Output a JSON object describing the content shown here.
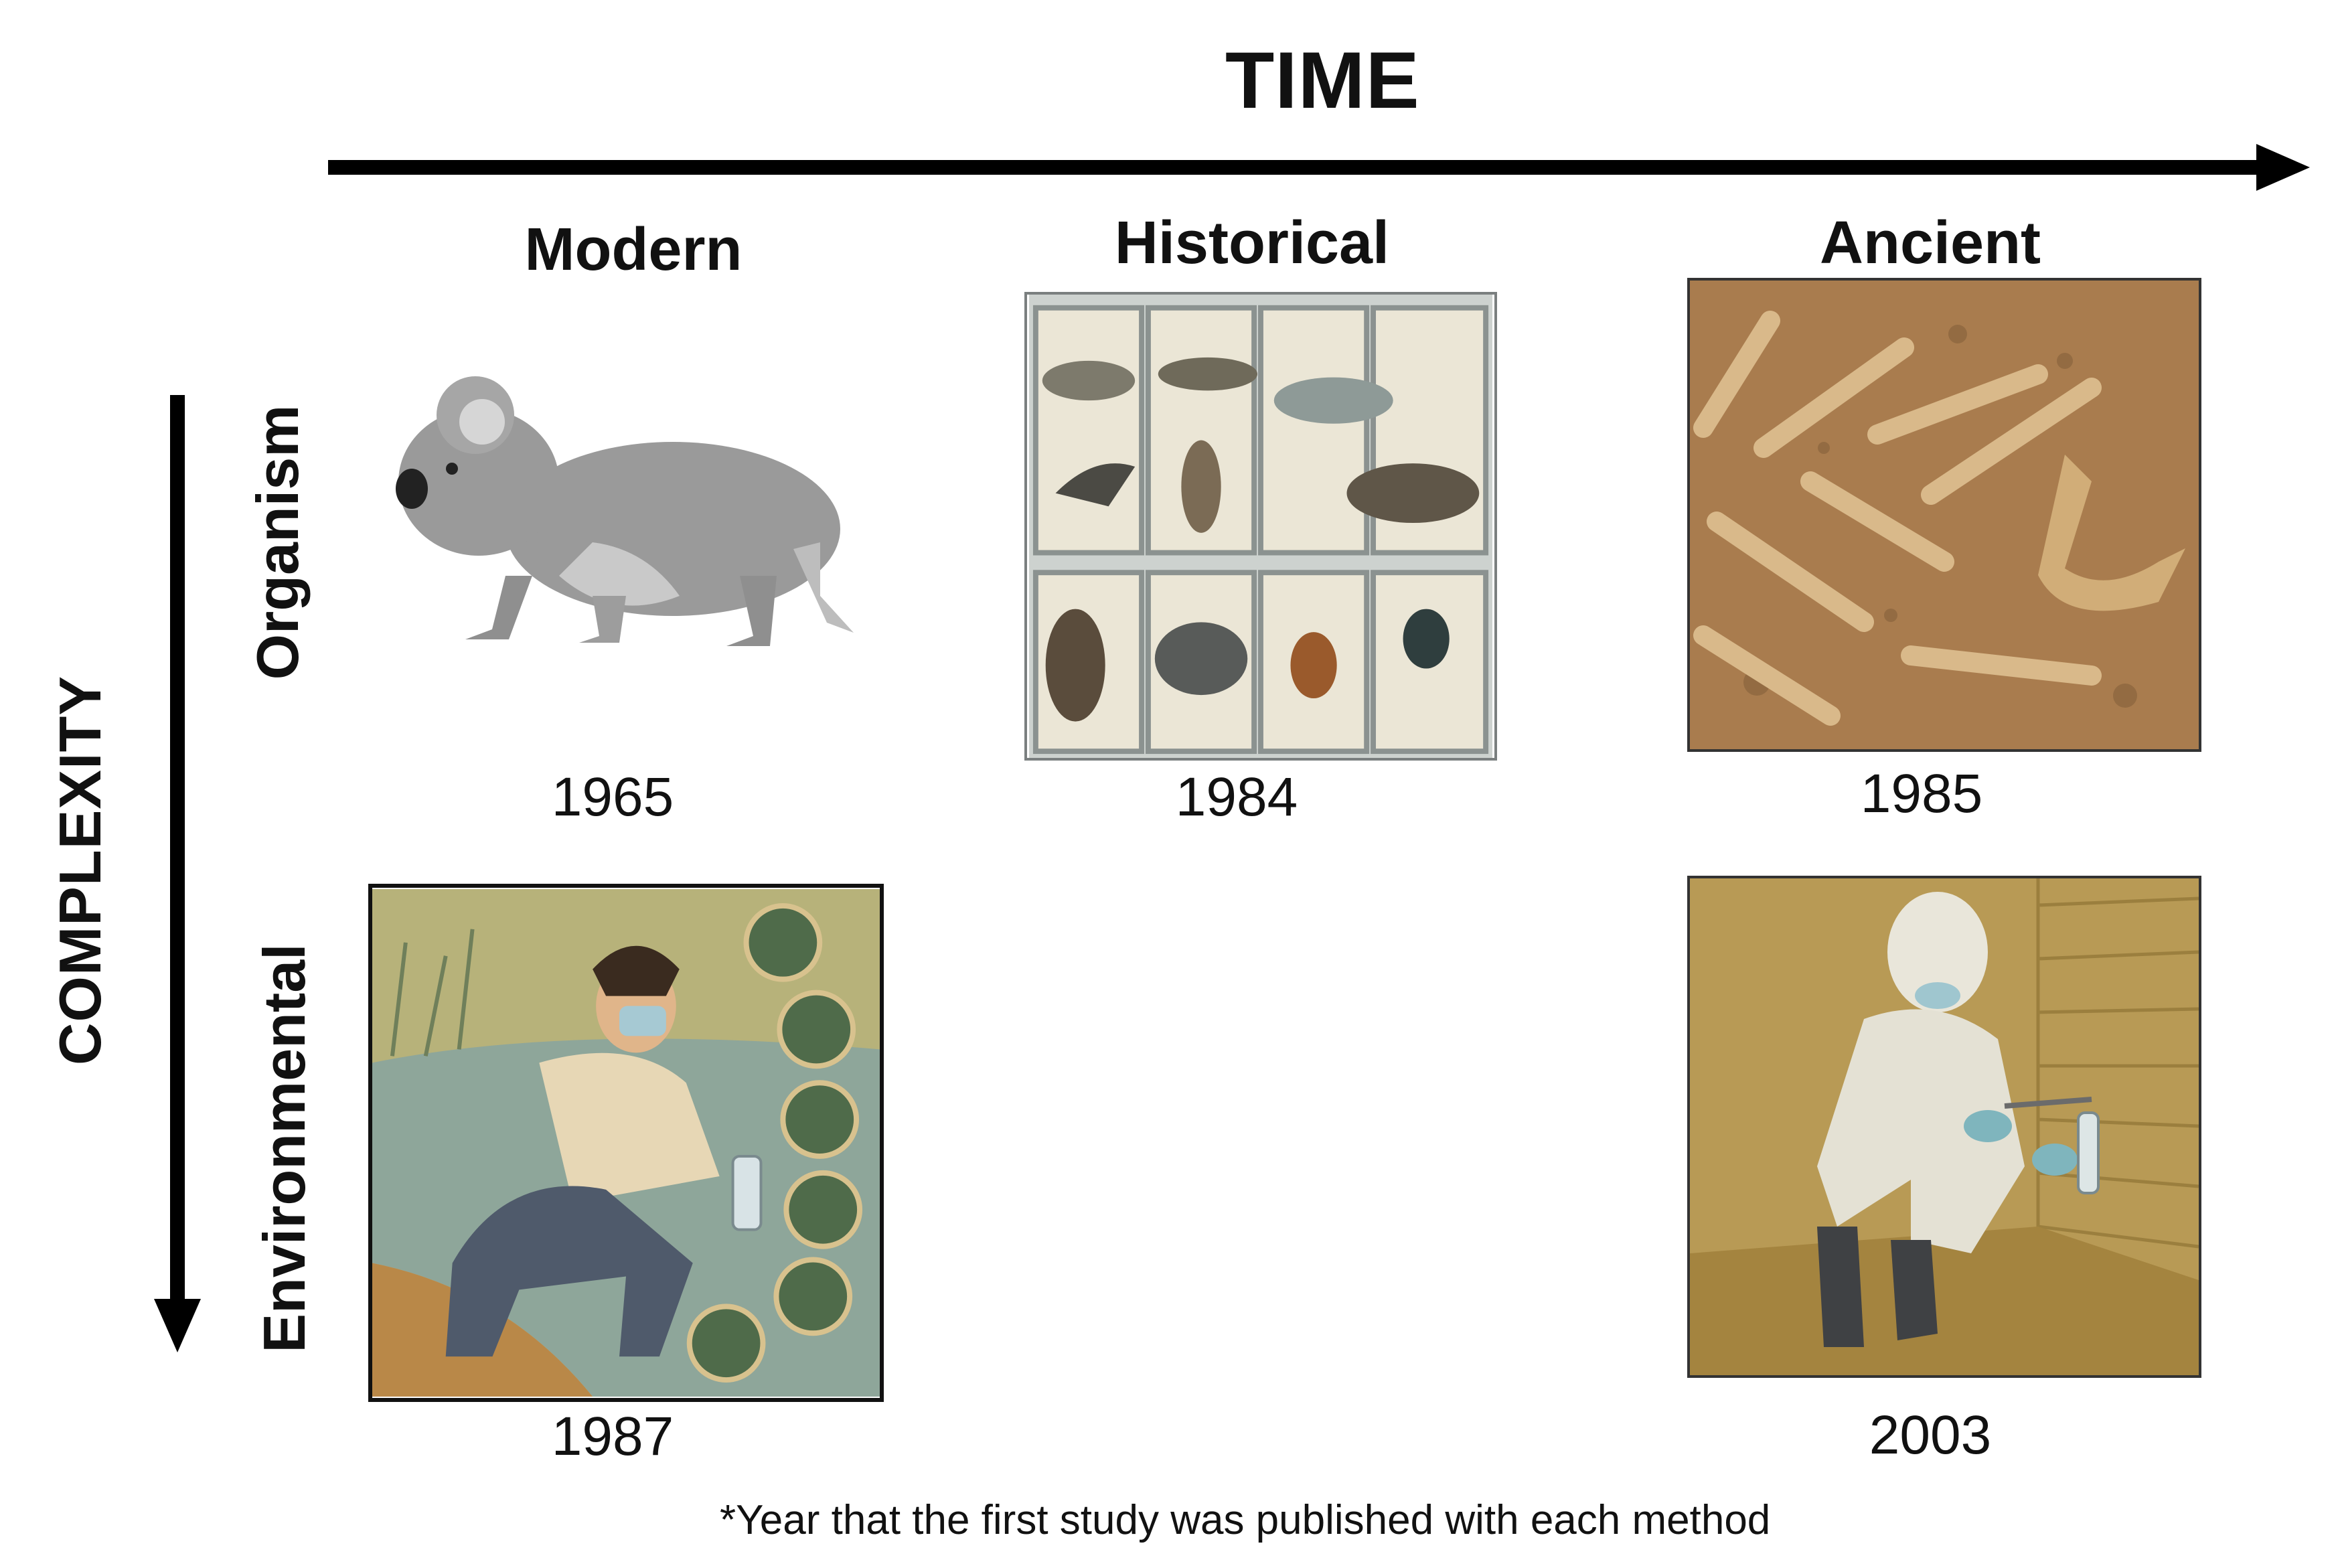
{
  "axes": {
    "time_label": "TIME",
    "complexity_label": "COMPLEXITY"
  },
  "columns": [
    "Modern",
    "Historical",
    "Ancient"
  ],
  "rows": [
    "Organism",
    "Environmental"
  ],
  "panels": [
    {
      "id": "modern-organism",
      "year": "1965",
      "icon": "koala-icon"
    },
    {
      "id": "historical-organism",
      "year": "1984",
      "icon": "museum-specimen-drawers"
    },
    {
      "id": "ancient-organism",
      "year": "1985",
      "icon": "excavated-bones"
    },
    {
      "id": "modern-environmental",
      "year": "1987",
      "icon": "water-sampling-scientist"
    },
    {
      "id": "ancient-environmental",
      "year": "2003",
      "icon": "sediment-sampling-scientist"
    }
  ],
  "footnote": "*Year that the first study was published with each method",
  "colors": {
    "koala": "#9a9a9a",
    "sediment": "#a97c4e",
    "parchment": "#d7b978",
    "water": "#8ea69a"
  }
}
